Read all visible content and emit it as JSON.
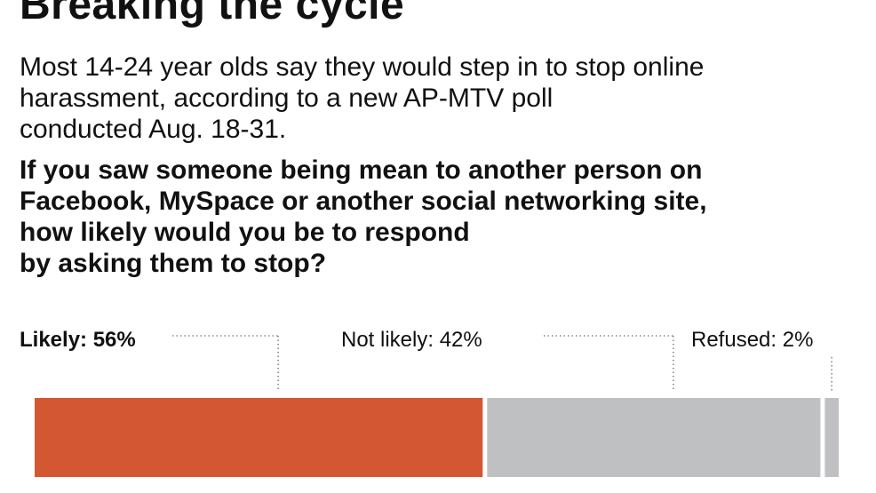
{
  "header": {
    "title": "Breaking the cycle",
    "subtitle_lines": [
      "Most 14-24 year olds say they would step in to stop online",
      "harassment, according to a new AP-MTV poll",
      "conducted Aug. 18-31."
    ],
    "question_lines": [
      "If you saw someone being mean to another person on",
      "Facebook, MySpace or another social networking site,",
      "how likely would you be to respond",
      "by asking them to stop?"
    ]
  },
  "chart_data": {
    "type": "bar",
    "orientation": "horizontal-stacked",
    "categories": [
      "Likely",
      "Not likely",
      "Refused"
    ],
    "values": [
      56,
      42,
      2
    ],
    "unit": "%",
    "labels": [
      "Likely: 56%",
      "Not likely: 42%",
      "Refused: 2%"
    ],
    "colors": [
      "#d35733",
      "#bfc0c2",
      "#bfc0c2"
    ],
    "label_bold": [
      true,
      false,
      false
    ],
    "xlim": [
      0,
      100
    ]
  }
}
